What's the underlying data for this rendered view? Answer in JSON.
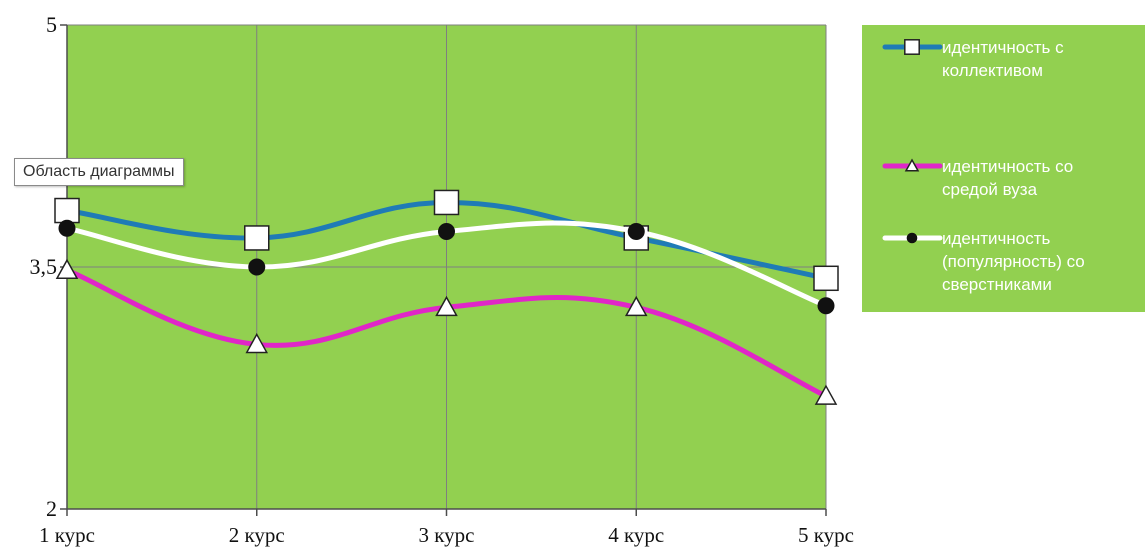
{
  "tooltip": "Область диаграммы",
  "colors": {
    "plot_background": "#92d050",
    "legend_background": "#92d050",
    "grid": "#7f7f7f",
    "axis": "#4d4d4d"
  },
  "chart_data": {
    "type": "line",
    "categories": [
      "1 курс",
      "2 курс",
      "3 курс",
      "4 курс",
      "5 курс"
    ],
    "ylim": [
      2,
      5
    ],
    "yticks": [
      {
        "value": 5,
        "label": "5"
      },
      {
        "value": 3.5,
        "label": "3,5"
      },
      {
        "value": 2,
        "label": "2"
      }
    ],
    "grid": true,
    "smooth": true,
    "legend_position": "right",
    "series": [
      {
        "name": "идентичность с коллективом",
        "legend_lines": [
          "идентичность с",
          "коллективом"
        ],
        "values": [
          3.85,
          3.68,
          3.9,
          3.68,
          3.43
        ],
        "color": "#1f7bb6",
        "marker": "square"
      },
      {
        "name": "идентичность со средой вуза",
        "legend_lines": [
          "идентичность со",
          "средой вуза"
        ],
        "values": [
          3.48,
          3.02,
          3.25,
          3.25,
          2.7
        ],
        "color": "#e026c8",
        "marker": "triangle"
      },
      {
        "name": "идентичность (популярность) со сверстниками",
        "legend_lines": [
          "идентичность",
          "(популярность) со",
          "сверстниками"
        ],
        "values": [
          3.74,
          3.5,
          3.72,
          3.72,
          3.26
        ],
        "color": "#ffffff",
        "marker": "circle"
      }
    ]
  }
}
